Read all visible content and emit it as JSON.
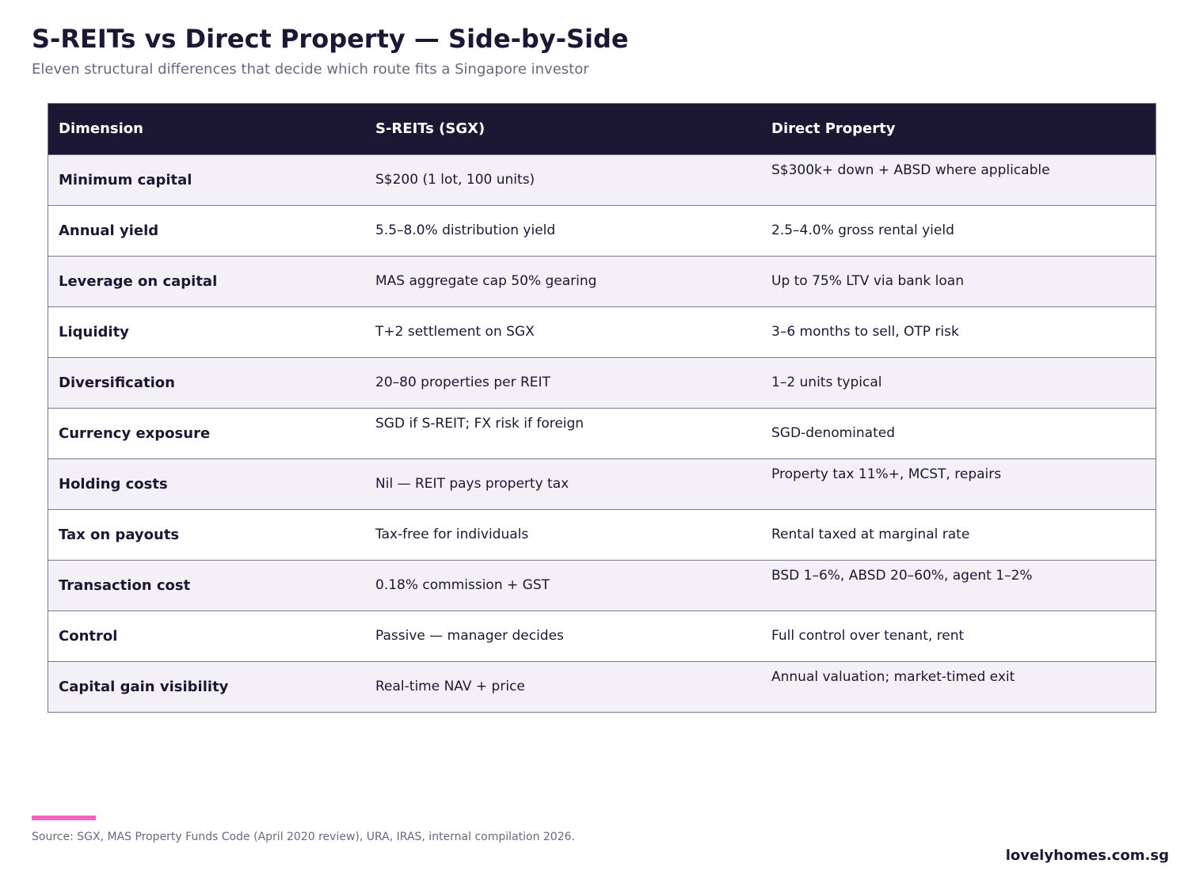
{
  "title": "S-REITs vs Direct Property — Side-by-Side",
  "subtitle": "Eleven structural differences that decide which route fits a Singapore investor",
  "chart_data": {
    "type": "table",
    "columns": [
      "Dimension",
      "S-REITs (SGX)",
      "Direct Property"
    ],
    "rows": [
      [
        "Minimum capital",
        "S$200 (1 lot, 100 units)",
        "S$300k+ down + ABSD where applicable"
      ],
      [
        "Annual yield",
        "5.5–8.0% distribution yield",
        "2.5–4.0% gross rental yield"
      ],
      [
        "Leverage on capital",
        "MAS aggregate cap 50% gearing",
        "Up to 75% LTV via bank loan"
      ],
      [
        "Liquidity",
        "T+2 settlement on SGX",
        "3–6 months to sell, OTP risk"
      ],
      [
        "Diversification",
        "20–80 properties per REIT",
        "1–2 units typical"
      ],
      [
        "Currency exposure",
        "SGD if S-REIT; FX risk if foreign",
        "SGD-denominated"
      ],
      [
        "Holding costs",
        "Nil — REIT pays property tax",
        "Property tax 11%+, MCST, repairs"
      ],
      [
        "Tax on payouts",
        "Tax-free for individuals",
        "Rental taxed at marginal rate"
      ],
      [
        "Transaction cost",
        "0.18% commission + GST",
        "BSD 1–6%, ABSD 20–60%, agent 1–2%"
      ],
      [
        "Control",
        "Passive — manager decides",
        "Full control over tenant, rent"
      ],
      [
        "Capital gain visibility",
        "Real-time NAV + price",
        "Annual valuation; market-timed exit"
      ]
    ]
  },
  "colors": {
    "header_bg": "#1c1833",
    "alt_row_bg": "#f3f0f7",
    "accent": "#f066c2"
  },
  "footer": {
    "source": "Source: SGX, MAS Property Funds Code (April 2020 review), URA, IRAS, internal compilation 2026.",
    "brand": "lovelyhomes.com.sg"
  }
}
